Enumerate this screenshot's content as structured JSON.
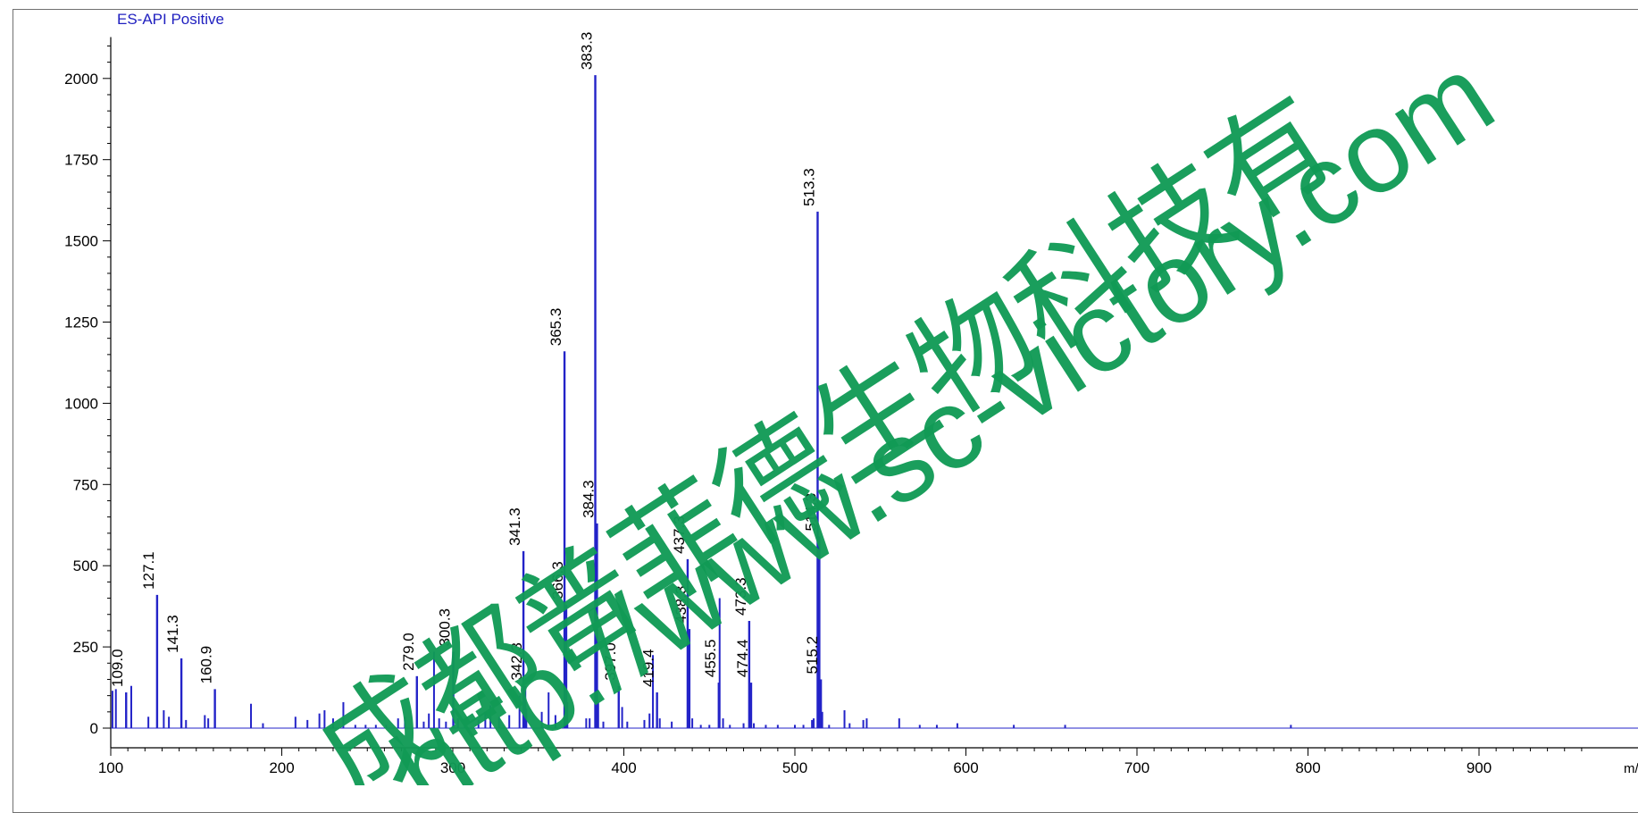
{
  "header": {
    "mode_title": "ES-API Positive"
  },
  "watermark": {
    "line1": "成都普菲德生物科技有",
    "line2": "http://www.sc-victory.com",
    "color": "#119a55"
  },
  "chart_data": {
    "type": "bar",
    "title": "ES-API Positive",
    "xlabel": "m/z",
    "ylabel": "",
    "xlim": [
      100,
      960
    ],
    "ylim": [
      0,
      2100
    ],
    "grid": false,
    "series_color": "#2323c8",
    "x_ticks": [
      100,
      200,
      300,
      400,
      500,
      600,
      700,
      800,
      900
    ],
    "y_ticks": [
      0,
      250,
      500,
      750,
      1000,
      1250,
      1500,
      1750,
      2000
    ],
    "labeled_peaks": [
      {
        "x": 109.0,
        "y": 110,
        "label": "109.0"
      },
      {
        "x": 127.1,
        "y": 410,
        "label": "127.1"
      },
      {
        "x": 141.3,
        "y": 215,
        "label": "141.3"
      },
      {
        "x": 160.9,
        "y": 120,
        "label": "160.9"
      },
      {
        "x": 279.0,
        "y": 160,
        "label": "279.0"
      },
      {
        "x": 300.3,
        "y": 235,
        "label": "300.3"
      },
      {
        "x": 342.3,
        "y": 130,
        "label": "342.3"
      },
      {
        "x": 341.3,
        "y": 545,
        "label": "341.3"
      },
      {
        "x": 365.3,
        "y": 1160,
        "label": "365.3"
      },
      {
        "x": 366.3,
        "y": 380,
        "label": "366.3"
      },
      {
        "x": 383.3,
        "y": 2010,
        "label": "383.3"
      },
      {
        "x": 384.3,
        "y": 630,
        "label": "384.3"
      },
      {
        "x": 397.0,
        "y": 130,
        "label": "397.0"
      },
      {
        "x": 419.4,
        "y": 110,
        "label": "419.4"
      },
      {
        "x": 437.3,
        "y": 520,
        "label": "437.3"
      },
      {
        "x": 438.3,
        "y": 305,
        "label": "438.3"
      },
      {
        "x": 455.5,
        "y": 140,
        "label": "455.5"
      },
      {
        "x": 473.3,
        "y": 330,
        "label": "473.3"
      },
      {
        "x": 474.4,
        "y": 140,
        "label": "474.4"
      },
      {
        "x": 513.3,
        "y": 1590,
        "label": "513.3"
      },
      {
        "x": 514.3,
        "y": 590,
        "label": "514.3"
      },
      {
        "x": 515.2,
        "y": 150,
        "label": "515.2"
      }
    ],
    "unlabeled_peaks": [
      {
        "x": 101,
        "y": 115
      },
      {
        "x": 103,
        "y": 120
      },
      {
        "x": 112,
        "y": 130
      },
      {
        "x": 122,
        "y": 35
      },
      {
        "x": 131,
        "y": 55
      },
      {
        "x": 134,
        "y": 35
      },
      {
        "x": 144,
        "y": 25
      },
      {
        "x": 155,
        "y": 40
      },
      {
        "x": 157,
        "y": 30
      },
      {
        "x": 182,
        "y": 75
      },
      {
        "x": 189,
        "y": 15
      },
      {
        "x": 208,
        "y": 35
      },
      {
        "x": 215,
        "y": 25
      },
      {
        "x": 222,
        "y": 45
      },
      {
        "x": 225,
        "y": 55
      },
      {
        "x": 230,
        "y": 30
      },
      {
        "x": 236,
        "y": 80
      },
      {
        "x": 243,
        "y": 10
      },
      {
        "x": 249,
        "y": 10
      },
      {
        "x": 255,
        "y": 10
      },
      {
        "x": 261,
        "y": 10
      },
      {
        "x": 268,
        "y": 30
      },
      {
        "x": 272,
        "y": 35
      },
      {
        "x": 283,
        "y": 20
      },
      {
        "x": 286,
        "y": 45
      },
      {
        "x": 289,
        "y": 235
      },
      {
        "x": 292,
        "y": 30
      },
      {
        "x": 296,
        "y": 20
      },
      {
        "x": 303,
        "y": 30
      },
      {
        "x": 307,
        "y": 15
      },
      {
        "x": 315,
        "y": 25
      },
      {
        "x": 319,
        "y": 50
      },
      {
        "x": 322,
        "y": 70
      },
      {
        "x": 327,
        "y": 35
      },
      {
        "x": 333,
        "y": 40
      },
      {
        "x": 339,
        "y": 100
      },
      {
        "x": 343,
        "y": 60
      },
      {
        "x": 352,
        "y": 50
      },
      {
        "x": 356,
        "y": 110
      },
      {
        "x": 360,
        "y": 40
      },
      {
        "x": 367,
        "y": 80
      },
      {
        "x": 378,
        "y": 30
      },
      {
        "x": 380,
        "y": 30
      },
      {
        "x": 385,
        "y": 80
      },
      {
        "x": 388,
        "y": 20
      },
      {
        "x": 399,
        "y": 65
      },
      {
        "x": 402,
        "y": 20
      },
      {
        "x": 412,
        "y": 25
      },
      {
        "x": 415,
        "y": 45
      },
      {
        "x": 417,
        "y": 225
      },
      {
        "x": 421,
        "y": 30
      },
      {
        "x": 428,
        "y": 20
      },
      {
        "x": 440,
        "y": 30
      },
      {
        "x": 445,
        "y": 10
      },
      {
        "x": 450,
        "y": 10
      },
      {
        "x": 456,
        "y": 400
      },
      {
        "x": 458,
        "y": 30
      },
      {
        "x": 462,
        "y": 10
      },
      {
        "x": 470,
        "y": 15
      },
      {
        "x": 476,
        "y": 15
      },
      {
        "x": 483,
        "y": 10
      },
      {
        "x": 490,
        "y": 10
      },
      {
        "x": 500,
        "y": 10
      },
      {
        "x": 505,
        "y": 10
      },
      {
        "x": 510,
        "y": 25
      },
      {
        "x": 511,
        "y": 30
      },
      {
        "x": 516,
        "y": 50
      },
      {
        "x": 520,
        "y": 10
      },
      {
        "x": 529,
        "y": 55
      },
      {
        "x": 532,
        "y": 15
      },
      {
        "x": 540,
        "y": 25
      },
      {
        "x": 542,
        "y": 30
      },
      {
        "x": 561,
        "y": 30
      },
      {
        "x": 573,
        "y": 10
      },
      {
        "x": 583,
        "y": 10
      },
      {
        "x": 595,
        "y": 15
      },
      {
        "x": 628,
        "y": 10
      },
      {
        "x": 658,
        "y": 10
      },
      {
        "x": 790,
        "y": 10
      }
    ]
  }
}
